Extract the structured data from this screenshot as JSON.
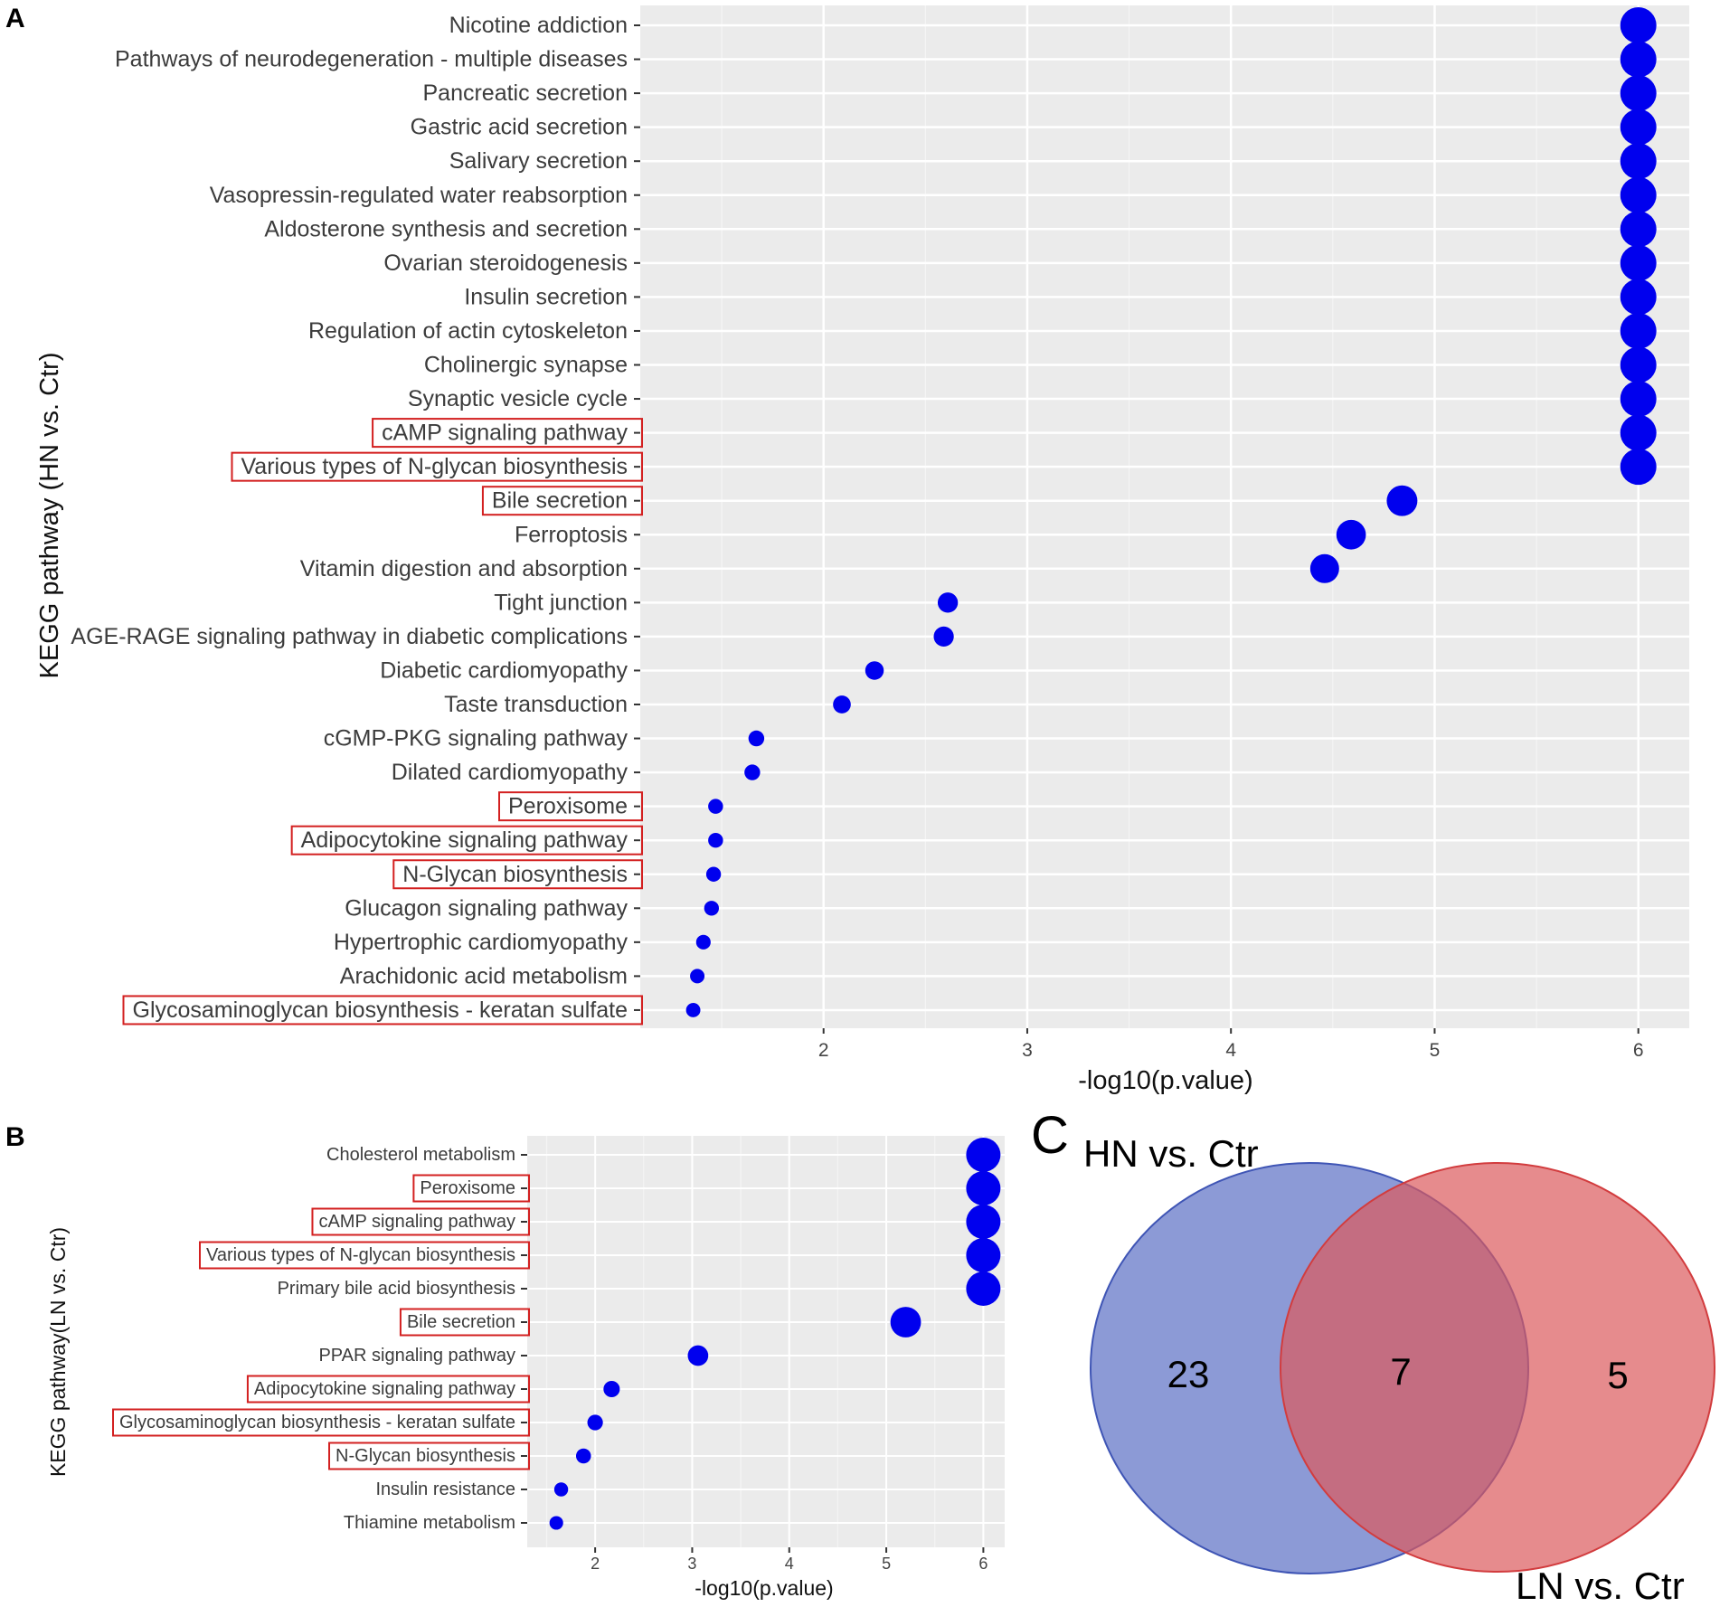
{
  "panel_letters": {
    "a": "A",
    "b": "B",
    "c": "C"
  },
  "chart_data": [
    {
      "type": "scatter",
      "panel": "A",
      "xlabel": "-log10(p.value)",
      "ylabel": "KEGG pathway (HN vs. Ctr)",
      "xlim": [
        1.1,
        6.25
      ],
      "xticks": [
        2,
        3,
        4,
        5,
        6
      ],
      "grid": true,
      "highlight_color": "#d32020",
      "point_color": "#0000ee",
      "categories": [
        "Nicotine addiction",
        "Pathways of neurodegeneration - multiple diseases",
        "Pancreatic secretion",
        "Gastric acid secretion",
        "Salivary secretion",
        "Vasopressin-regulated water reabsorption",
        "Aldosterone synthesis and secretion",
        "Ovarian steroidogenesis",
        "Insulin secretion",
        "Regulation of actin cytoskeleton",
        "Cholinergic synapse",
        "Synaptic vesicle cycle",
        "cAMP signaling pathway",
        "Various types of N-glycan biosynthesis",
        "Bile secretion",
        "Ferroptosis",
        "Vitamin digestion and absorption",
        "Tight junction",
        "AGE-RAGE signaling pathway in diabetic complications",
        "Diabetic cardiomyopathy",
        "Taste transduction",
        "cGMP-PKG signaling pathway",
        "Dilated cardiomyopathy",
        "Peroxisome",
        "Adipocytokine signaling pathway",
        "N-Glycan biosynthesis",
        "Glucagon signaling pathway",
        "Hypertrophic cardiomyopathy",
        "Arachidonic acid metabolism",
        "Glycosaminoglycan biosynthesis - keratan sulfate"
      ],
      "values": [
        6,
        6,
        6,
        6,
        6,
        6,
        6,
        6,
        6,
        6,
        6,
        6,
        6,
        6,
        4.84,
        4.59,
        4.46,
        2.61,
        2.59,
        2.25,
        2.09,
        1.67,
        1.65,
        1.47,
        1.47,
        1.46,
        1.45,
        1.41,
        1.38,
        1.36
      ],
      "highlighted": [
        12,
        13,
        14,
        23,
        24,
        25,
        29
      ]
    },
    {
      "type": "scatter",
      "panel": "B",
      "xlabel": "-log10(p.value)",
      "ylabel": "KEGG pathway(LN vs. Ctr)",
      "xlim": [
        1.3,
        6.22
      ],
      "xticks": [
        2,
        3,
        4,
        5,
        6
      ],
      "grid": true,
      "highlight_color": "#d32020",
      "point_color": "#0000ee",
      "categories": [
        "Cholesterol metabolism",
        "Peroxisome",
        "cAMP signaling pathway",
        "Various types of N-glycan biosynthesis",
        "Primary bile acid biosynthesis",
        "Bile secretion",
        "PPAR signaling pathway",
        "Adipocytokine signaling pathway",
        "Glycosaminoglycan biosynthesis - keratan sulfate",
        "N-Glycan biosynthesis",
        "Insulin resistance",
        "Thiamine metabolism"
      ],
      "values": [
        6,
        6,
        6,
        6,
        6,
        5.2,
        3.06,
        2.17,
        2.0,
        1.88,
        1.65,
        1.6
      ],
      "highlighted": [
        1,
        2,
        3,
        5,
        7,
        8,
        9
      ]
    }
  ],
  "venn": {
    "set_a": {
      "label": "HN vs. Ctr",
      "color": "#5b6fc4",
      "only": "23"
    },
    "set_b": {
      "label": "LN vs. Ctr",
      "color": "#dc5a5c",
      "only": "5"
    },
    "intersection": "7"
  }
}
